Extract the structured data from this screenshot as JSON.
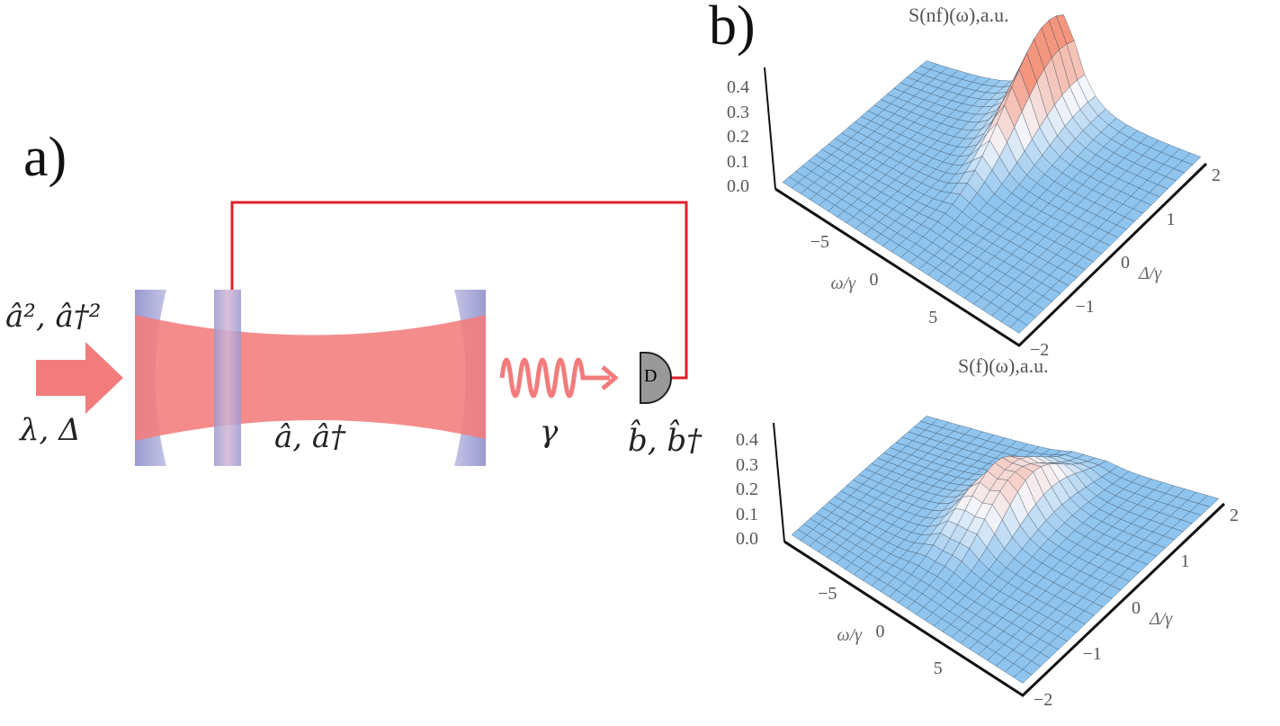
{
  "panel_a": {
    "label": "a)",
    "pump_label": "â², â†²",
    "param_label": "λ, Δ",
    "cavity_mode_label": "â, â†",
    "decay_label": "γ",
    "output_mode_label": "b̂, b̂†",
    "detector_label": "D",
    "colors": {
      "beam": "#f27c7c",
      "mirror": "#9a9ad0",
      "feedback": "#e0202a"
    }
  },
  "panel_b": {
    "label": "b)",
    "plots": [
      {
        "title": "S(nf)(ω),a.u.",
        "z_ticks": [
          "0.4",
          "0.3",
          "0.2",
          "0.1",
          "0.0"
        ],
        "omega_ticks": [
          "−5",
          "0",
          "5"
        ],
        "omega_label": "ω/γ",
        "delta_ticks": [
          "2",
          "1",
          "0",
          "−1",
          "−2"
        ],
        "delta_label": "Δ/γ"
      },
      {
        "title": "S(f)(ω),a.u.",
        "z_ticks": [
          "0.4",
          "0.3",
          "0.2",
          "0.1",
          "0.0"
        ],
        "omega_ticks": [
          "−5",
          "0",
          "5"
        ],
        "omega_label": "ω/γ",
        "delta_ticks": [
          "2",
          "1",
          "0",
          "−1",
          "−2"
        ],
        "delta_label": "Δ/γ"
      }
    ]
  }
}
